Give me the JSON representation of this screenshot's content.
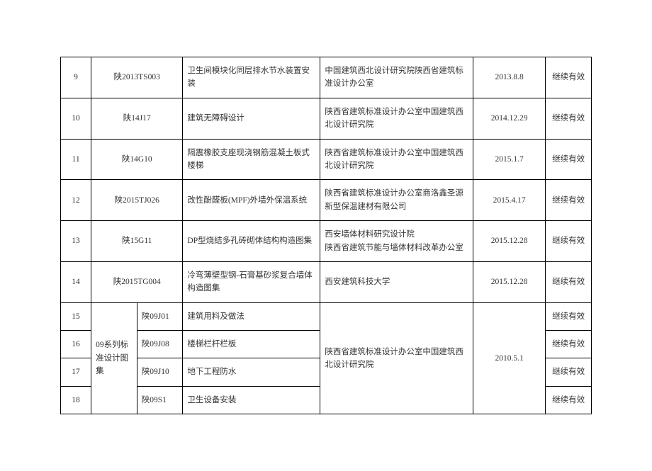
{
  "table": {
    "rows": [
      {
        "num": "9",
        "code": "陕2013TS003",
        "name": "卫生间模块化同层排水节水装置安装",
        "org": "中国建筑西北设计研究院陕西省建筑标准设计办公室",
        "date": "2013.8.8",
        "status": "继续有效"
      },
      {
        "num": "10",
        "code": "陕14J17",
        "name": "建筑无障碍设计",
        "org": "陕西省建筑标准设计办公室中国建筑西北设计研究院",
        "date": "2014.12.29",
        "status": "继续有效"
      },
      {
        "num": "11",
        "code": "陕14G10",
        "name": "隔震橡胶支座现浇钢筋混凝土板式楼梯",
        "org": "陕西省建筑标准设计办公室中国建筑西北设计研究院",
        "date": "2015.1.7",
        "status": "继续有效"
      },
      {
        "num": "12",
        "code": "陕2015TJ026",
        "name": "改性酚醛板(MPF)外墙外保温系统",
        "org": "陕西省建筑标准设计办公室商洛鑫圣源新型保温建材有限公司",
        "date": "2015.4.17",
        "status": "继续有效"
      },
      {
        "num": "13",
        "code": "陕15G11",
        "name": "DP型烧结多孔砖砌体结构构造图集",
        "org": "西安墙体材料研究设计院\n陕西省建筑节能与墙体材料改革办公室",
        "date": "2015.12.28",
        "status": "继续有效"
      },
      {
        "num": "14",
        "code": "陕2015TG004",
        "name": "冷弯薄壁型钢-石膏基砂浆复合墙体构造图集",
        "org": "西安建筑科技大学",
        "date": "2015.12.28",
        "status": "继续有效"
      }
    ],
    "groupedRows": {
      "seriesLabel": "09系列标准设计图集",
      "sharedOrg": "陕西省建筑标准设计办公室中国建筑西北设计研究院",
      "sharedDate": "2010.5.1",
      "items": [
        {
          "num": "15",
          "subcode": "陕09J01",
          "name": "建筑用料及做法",
          "status": "继续有效"
        },
        {
          "num": "16",
          "subcode": "陕09J08",
          "name": "楼梯栏杆栏板",
          "status": "继续有效"
        },
        {
          "num": "17",
          "subcode": "陕09J10",
          "name": "地下工程防水",
          "status": "继续有效"
        },
        {
          "num": "18",
          "subcode": "陕09S1",
          "name": "卫生设备安装",
          "status": "继续有效"
        }
      ]
    }
  },
  "style": {
    "background_color": "#ffffff",
    "border_color": "#000000",
    "text_color": "#333333",
    "font_size": 11.5,
    "font_family": "SimSun"
  }
}
